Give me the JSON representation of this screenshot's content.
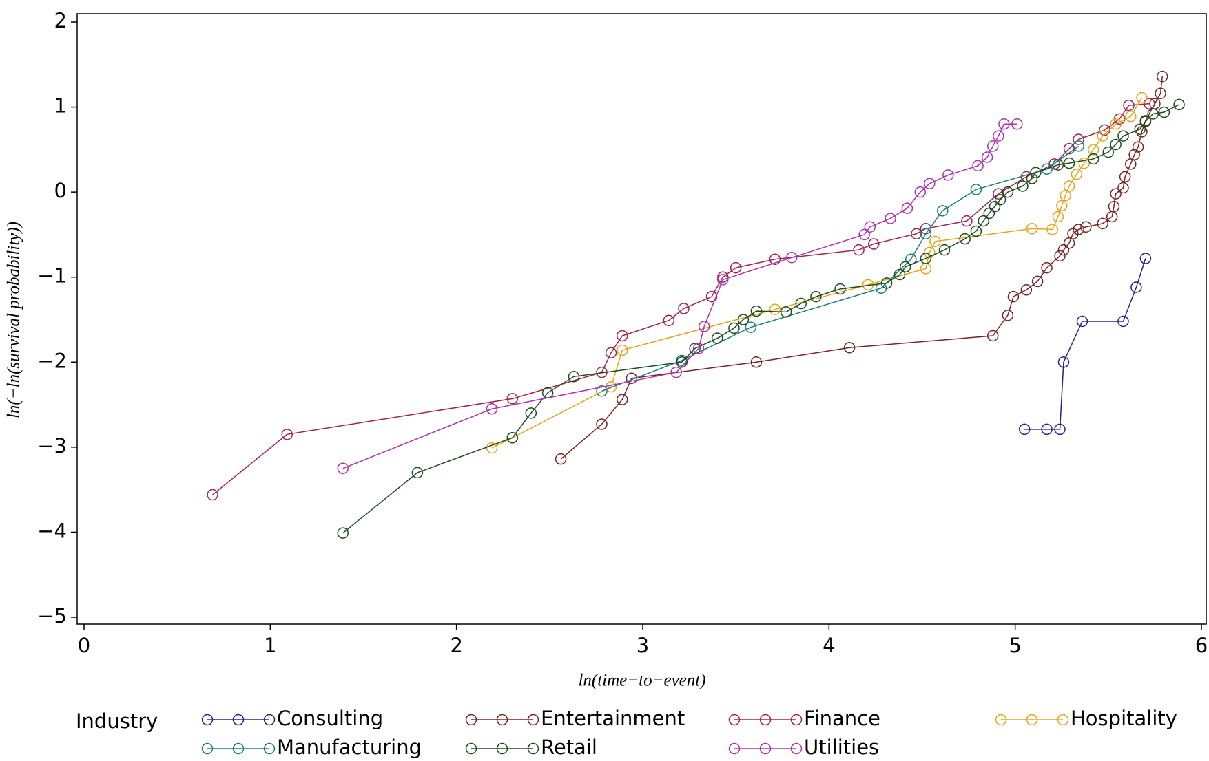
{
  "chart_data": {
    "type": "line",
    "x_label": "ln(time−to−event)",
    "y_label": "ln(−ln(survival probability))",
    "legend_title": "Industry",
    "xlim": [
      0,
      6
    ],
    "xticks": [
      0,
      1,
      2,
      3,
      4,
      5,
      6
    ],
    "ylim": [
      -5,
      2
    ],
    "yticks": [
      {
        "value": -5,
        "label": "−5"
      },
      {
        "value": -4,
        "label": "−4"
      },
      {
        "value": -3,
        "label": "−3"
      },
      {
        "value": -2,
        "label": "−2"
      },
      {
        "value": -1,
        "label": "−1"
      },
      0,
      1,
      2
    ],
    "series": [
      {
        "name": "Consulting",
        "color": "#23238f",
        "x": [
          5.05,
          5.17,
          5.24,
          5.26,
          5.36,
          5.58,
          5.65,
          5.7
        ],
        "values": [
          -2.79,
          -2.79,
          -2.79,
          -2.0,
          -1.52,
          -1.52,
          -1.12,
          -0.78
        ]
      },
      {
        "name": "Entertainment",
        "color": "#7a2222",
        "x": [
          2.56,
          2.78,
          2.89,
          2.94,
          3.61,
          4.11,
          4.88,
          4.96,
          4.99,
          5.06,
          5.12,
          5.17,
          5.24,
          5.26,
          5.29,
          5.31,
          5.34,
          5.38,
          5.47,
          5.52,
          5.53,
          5.54,
          5.58,
          5.59,
          5.62,
          5.64,
          5.66,
          5.68,
          5.7,
          5.75,
          5.78,
          5.79
        ],
        "values": [
          -3.14,
          -2.73,
          -2.44,
          -2.19,
          -2.0,
          -1.83,
          -1.69,
          -1.45,
          -1.23,
          -1.15,
          -1.05,
          -0.89,
          -0.75,
          -0.68,
          -0.6,
          -0.49,
          -0.44,
          -0.41,
          -0.37,
          -0.29,
          -0.17,
          -0.02,
          0.05,
          0.18,
          0.33,
          0.44,
          0.53,
          0.71,
          0.84,
          1.04,
          1.16,
          1.36
        ]
      },
      {
        "name": "Finance",
        "color": "#a3204c",
        "x": [
          0.69,
          1.09,
          2.3,
          2.78,
          2.83,
          2.89,
          3.14,
          3.22,
          3.37,
          3.43,
          3.5,
          3.71,
          4.16,
          4.24,
          4.47,
          4.52,
          4.74,
          4.91,
          5.06,
          5.21,
          5.29,
          5.34,
          5.48,
          5.56,
          5.61,
          5.72
        ],
        "values": [
          -3.56,
          -2.85,
          -2.43,
          -2.12,
          -1.89,
          -1.69,
          -1.51,
          -1.37,
          -1.23,
          -1.0,
          -0.89,
          -0.79,
          -0.68,
          -0.61,
          -0.49,
          -0.43,
          -0.34,
          -0.02,
          0.18,
          0.33,
          0.51,
          0.62,
          0.73,
          0.86,
          1.02,
          1.04
        ]
      },
      {
        "name": "Hospitality",
        "color": "#e8a317",
        "x": [
          2.19,
          2.3,
          2.83,
          2.89,
          3.71,
          4.21,
          4.52,
          4.54,
          4.57,
          5.09,
          5.2,
          5.23,
          5.25,
          5.27,
          5.29,
          5.33,
          5.37,
          5.42,
          5.47,
          5.54,
          5.62,
          5.68
        ],
        "values": [
          -3.01,
          -2.89,
          -2.29,
          -1.86,
          -1.38,
          -1.09,
          -0.9,
          -0.71,
          -0.58,
          -0.43,
          -0.44,
          -0.29,
          -0.16,
          -0.04,
          0.07,
          0.21,
          0.34,
          0.5,
          0.66,
          0.8,
          0.89,
          1.11
        ]
      },
      {
        "name": "Manufacturing",
        "color": "#1a7f7f",
        "x": [
          2.78,
          3.21,
          3.58,
          4.28,
          4.44,
          4.52,
          4.61,
          4.79,
          5.17,
          5.34
        ],
        "values": [
          -2.34,
          -1.98,
          -1.59,
          -1.13,
          -0.79,
          -0.49,
          -0.22,
          0.03,
          0.27,
          0.54
        ]
      },
      {
        "name": "Retail",
        "color": "#1d4d1d",
        "x": [
          1.39,
          1.79,
          2.3,
          2.4,
          2.49,
          2.63,
          3.21,
          3.28,
          3.4,
          3.49,
          3.54,
          3.61,
          3.77,
          3.85,
          3.93,
          4.06,
          4.31,
          4.38,
          4.41,
          4.52,
          4.62,
          4.73,
          4.79,
          4.83,
          4.86,
          4.89,
          4.92,
          4.96,
          5.04,
          5.09,
          5.11,
          5.23,
          5.29,
          5.42,
          5.5,
          5.54,
          5.58,
          5.67,
          5.7,
          5.74,
          5.8,
          5.88
        ],
        "values": [
          -4.01,
          -3.3,
          -2.89,
          -2.6,
          -2.36,
          -2.17,
          -2.0,
          -1.84,
          -1.72,
          -1.6,
          -1.5,
          -1.4,
          -1.41,
          -1.31,
          -1.23,
          -1.14,
          -1.07,
          -0.97,
          -0.88,
          -0.78,
          -0.68,
          -0.55,
          -0.46,
          -0.34,
          -0.25,
          -0.17,
          -0.09,
          0.0,
          0.07,
          0.16,
          0.23,
          0.32,
          0.34,
          0.39,
          0.47,
          0.56,
          0.66,
          0.74,
          0.83,
          0.92,
          0.94,
          1.03
        ]
      },
      {
        "name": "Utilities",
        "color": "#b030b0",
        "x": [
          1.39,
          2.19,
          3.18,
          3.3,
          3.33,
          3.43,
          3.8,
          4.19,
          4.22,
          4.33,
          4.42,
          4.49,
          4.54,
          4.64,
          4.8,
          4.85,
          4.88,
          4.91,
          4.94,
          5.01
        ],
        "values": [
          -3.25,
          -2.55,
          -2.12,
          -1.84,
          -1.58,
          -1.03,
          -0.77,
          -0.5,
          -0.41,
          -0.31,
          -0.19,
          0.0,
          0.1,
          0.2,
          0.31,
          0.41,
          0.54,
          0.66,
          0.8,
          0.8
        ]
      }
    ]
  }
}
